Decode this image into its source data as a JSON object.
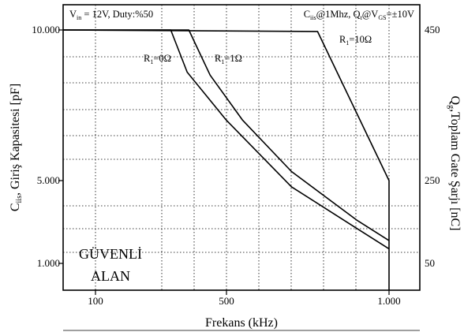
{
  "chart_data": {
    "type": "line",
    "xlabel": "Frekans (kHz)",
    "ylabel": "C<sub>iis</sub>, Giriş Kapasitesi [pF]",
    "ylabel_parts": [
      "C",
      "iis",
      ", Giriş Kapasitesi [pF]"
    ],
    "y2label_parts": [
      "Q",
      "g",
      ",Toplam Gate Şarjı [nC]"
    ],
    "x_ticks": [
      {
        "label": "100",
        "value": 100
      },
      {
        "label": "500",
        "value": 500
      },
      {
        "label": "1.000",
        "value": 1000
      }
    ],
    "y_ticks": [
      {
        "label": "10.000",
        "value": 10000
      },
      {
        "label": "5.000",
        "value": 5000
      },
      {
        "label": "1.000",
        "value": 1000
      }
    ],
    "y2_ticks": [
      {
        "label": "450",
        "value": 450
      },
      {
        "label": "250",
        "value": 250
      },
      {
        "label": "50",
        "value": 50
      }
    ],
    "xlim": [
      0,
      1100
    ],
    "ylim": [
      500,
      10200
    ],
    "grid": true,
    "series": [
      {
        "name": "R1=0Ω",
        "label_parts": [
          "R",
          "1",
          "=0Ω"
        ],
        "points": [
          [
            0,
            10000
          ],
          [
            330,
            10000
          ],
          [
            380,
            8600
          ],
          [
            500,
            7000
          ],
          [
            700,
            4700
          ],
          [
            900,
            2700
          ],
          [
            1000,
            1700
          ]
        ]
      },
      {
        "name": "R1=1Ω",
        "label_parts": [
          "R",
          "1",
          "=1Ω"
        ],
        "points": [
          [
            0,
            10000
          ],
          [
            385,
            10000
          ],
          [
            450,
            8500
          ],
          [
            550,
            7000
          ],
          [
            700,
            5300
          ],
          [
            900,
            3100
          ],
          [
            1000,
            2100
          ]
        ]
      },
      {
        "name": "R1=10Ω",
        "label_parts": [
          "R",
          "1",
          "=10Ω"
        ],
        "points": [
          [
            0,
            10000
          ],
          [
            780,
            9950
          ],
          [
            1000,
            5000
          ],
          [
            1000,
            500
          ]
        ]
      }
    ],
    "annotations": {
      "top_left": {
        "parts": [
          "V",
          "in",
          " = 12V, Duty:%50"
        ]
      },
      "top_right": {
        "parts": [
          "C",
          "iis",
          "@1Mhz, Q",
          "t",
          "@V",
          "GS",
          "=±10V"
        ]
      },
      "safe_area_line1": "GÜVENLİ",
      "safe_area_line2": "ALAN"
    }
  }
}
